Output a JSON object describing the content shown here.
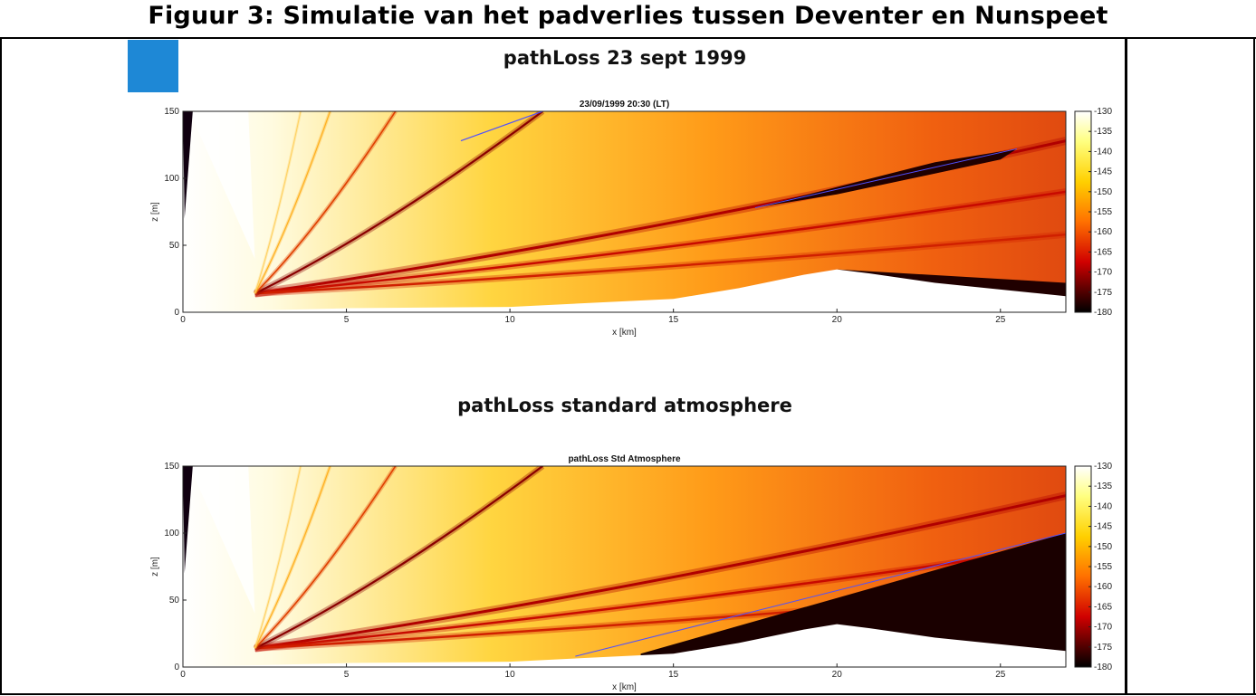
{
  "figure_title": "Figuur 3: Simulatie van het padverlies tussen Deventer en Nunspeet",
  "colors": {
    "accent_square": "#1e88d6",
    "frame": "#000000"
  },
  "panels": [
    {
      "heading": "pathLoss 23 sept 1999",
      "plot_title": "23/09/1999 20:30 (LT)"
    },
    {
      "heading": "pathLoss standard atmosphere",
      "plot_title": "pathLoss Std Atmosphere"
    }
  ],
  "chart_data": [
    {
      "type": "heatmap",
      "title": "23/09/1999 20:30 (LT)",
      "xlabel": "x [km]",
      "ylabel": "z [m]",
      "xlim": [
        0,
        27
      ],
      "ylim": [
        0,
        150
      ],
      "xticks": [
        0,
        5,
        10,
        15,
        20,
        25
      ],
      "yticks": [
        0,
        50,
        100,
        150
      ],
      "colorbar": {
        "min": -180,
        "max": -130,
        "ticks": [
          -130,
          -135,
          -140,
          -145,
          -150,
          -155,
          -160,
          -165,
          -170,
          -175,
          -180
        ],
        "colormap": "hot"
      },
      "terrain_height_m": {
        "x": [
          0,
          5,
          10,
          15,
          17,
          19,
          20,
          21,
          23,
          25,
          27
        ],
        "z": [
          0,
          3,
          4,
          10,
          18,
          28,
          32,
          29,
          22,
          17,
          12
        ]
      }
    },
    {
      "type": "heatmap",
      "title": "pathLoss Std Atmosphere",
      "xlabel": "x [km]",
      "ylabel": "z [m]",
      "xlim": [
        0,
        27
      ],
      "ylim": [
        0,
        150
      ],
      "xticks": [
        0,
        5,
        10,
        15,
        20,
        25
      ],
      "yticks": [
        0,
        50,
        100,
        150
      ],
      "colorbar": {
        "min": -180,
        "max": -130,
        "ticks": [
          -130,
          -135,
          -140,
          -145,
          -150,
          -155,
          -160,
          -165,
          -170,
          -175,
          -180
        ],
        "colormap": "hot"
      },
      "terrain_height_m": {
        "x": [
          0,
          5,
          10,
          15,
          17,
          19,
          20,
          21,
          23,
          25,
          27
        ],
        "z": [
          0,
          3,
          4,
          10,
          18,
          28,
          32,
          29,
          22,
          17,
          12
        ]
      }
    }
  ]
}
